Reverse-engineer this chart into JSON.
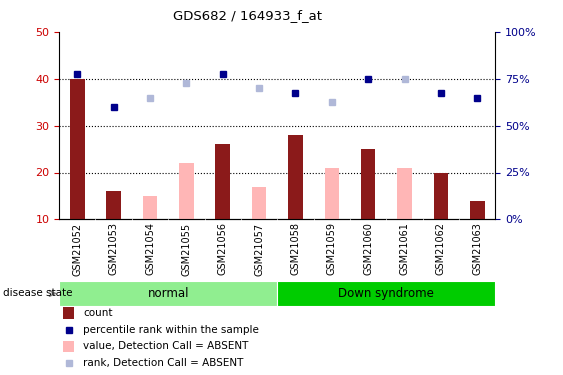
{
  "title": "GDS682 / 164933_f_at",
  "samples": [
    "GSM21052",
    "GSM21053",
    "GSM21054",
    "GSM21055",
    "GSM21056",
    "GSM21057",
    "GSM21058",
    "GSM21059",
    "GSM21060",
    "GSM21061",
    "GSM21062",
    "GSM21063"
  ],
  "count_values": [
    40,
    16,
    null,
    null,
    26,
    null,
    28,
    null,
    25,
    null,
    20,
    14
  ],
  "count_absent": [
    null,
    null,
    15,
    22,
    null,
    17,
    null,
    21,
    null,
    21,
    null,
    null
  ],
  "percentile_rank": [
    41,
    34,
    null,
    null,
    41,
    null,
    37,
    null,
    40,
    null,
    37,
    36
  ],
  "rank_absent": [
    null,
    null,
    36,
    39,
    null,
    38,
    null,
    35,
    null,
    40,
    null,
    null
  ],
  "ylim_left": [
    10,
    50
  ],
  "left_ticks": [
    10,
    20,
    30,
    40,
    50
  ],
  "right_ticks_pos": [
    10,
    20,
    30,
    40,
    50
  ],
  "right_tick_labels": [
    "0%",
    "25%",
    "50%",
    "75%",
    "100%"
  ],
  "dotted_lines": [
    20,
    30,
    40
  ],
  "bar_color_present": "#8B1A1A",
  "bar_color_absent": "#FFB6B6",
  "dot_color_present": "#00008B",
  "dot_color_absent": "#B0B8D8",
  "group_normal_color": "#90EE90",
  "group_ds_color": "#00CC00",
  "tick_bg_color": "#C8C8C8",
  "legend_items": [
    {
      "label": "count",
      "color": "#8B1A1A",
      "type": "rect"
    },
    {
      "label": "percentile rank within the sample",
      "color": "#00008B",
      "type": "square"
    },
    {
      "label": "value, Detection Call = ABSENT",
      "color": "#FFB6B6",
      "type": "rect"
    },
    {
      "label": "rank, Detection Call = ABSENT",
      "color": "#B0B8D8",
      "type": "square"
    }
  ]
}
